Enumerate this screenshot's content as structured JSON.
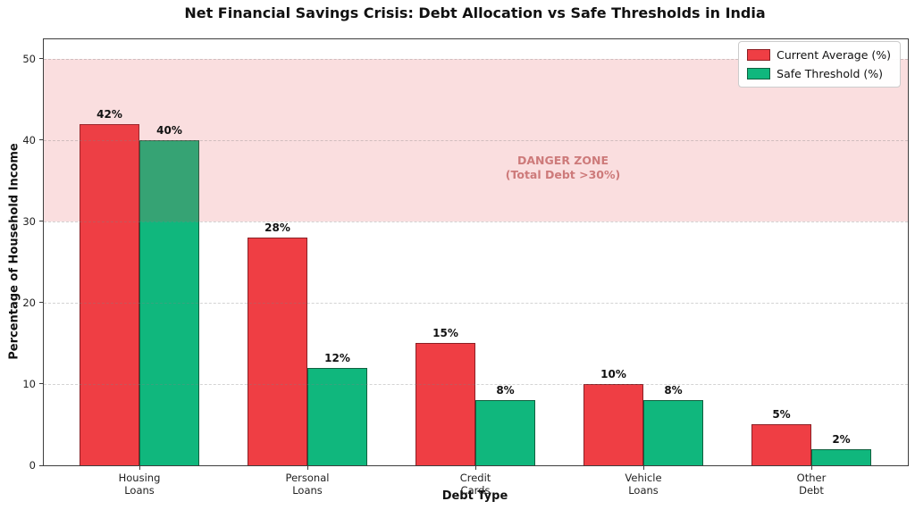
{
  "figure": {
    "title": "Net Financial Savings Crisis: Debt Allocation vs Safe Thresholds in India"
  },
  "chart_data": {
    "type": "bar",
    "title": "Net Financial Savings Crisis: Debt Allocation vs Safe Thresholds in India",
    "xlabel": "Debt Type",
    "ylabel": "Percentage of Household Income",
    "categories": [
      "Housing\nLoans",
      "Personal\nLoans",
      "Credit\nCards",
      "Vehicle\nLoans",
      "Other\nDebt"
    ],
    "series": [
      {
        "name": "Current Average (%)",
        "values": [
          42,
          28,
          15,
          10,
          5
        ],
        "fill": "#ef3e44",
        "edge": "#8b2025"
      },
      {
        "name": "Safe Threshold (%)",
        "values": [
          40,
          12,
          8,
          8,
          2
        ],
        "fill": "#10b77d",
        "edge": "#11603f"
      }
    ],
    "value_label_suffix": "%",
    "yticks": [
      0,
      10,
      20,
      30,
      40,
      50
    ],
    "ylim": [
      0,
      52.4
    ],
    "grid": "horizontal-dashed",
    "legend_position": "upper-right",
    "danger_zone": {
      "from": 30,
      "to": 50,
      "fill": "rgba(230,70,75,0.18)"
    },
    "annotation": {
      "line1": "DANGER ZONE",
      "line2": "(Total Debt >30%)",
      "color": "#cd7a7a"
    }
  }
}
